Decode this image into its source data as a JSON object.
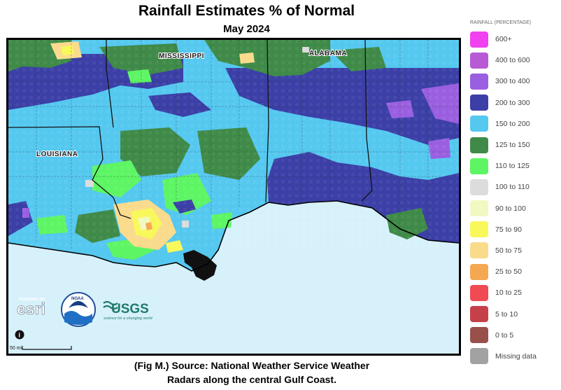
{
  "title": "Rainfall Estimates % of Normal",
  "subtitle": "May 2024",
  "caption_line1": "(Fig M.) Source: National Weather Service Weather",
  "caption_line2": "Radars along the central Gulf Coast.",
  "map": {
    "state_labels": [
      "MISSISSIPPI",
      "ALABAMA",
      "LOUISIANA"
    ],
    "scale_text": "50 mi",
    "info_icon": "info-icon",
    "logos": {
      "esri_top": "POWERED BY",
      "esri": "esri",
      "noaa": "NOAA",
      "usgs": "USGS",
      "usgs_tagline": "science for a changing world"
    },
    "gulf_color": "#d7f1fb"
  },
  "legend": {
    "title": "RAINFALL (percentage)",
    "items": [
      {
        "label": "600+",
        "color": "#f040f0"
      },
      {
        "label": "400 to 600",
        "color": "#b85ad6"
      },
      {
        "label": "300 to 400",
        "color": "#9a5fe0"
      },
      {
        "label": "200 to 300",
        "color": "#3b3fa6"
      },
      {
        "label": "150 to 200",
        "color": "#55c8f0"
      },
      {
        "label": "125 to 150",
        "color": "#3f8a48"
      },
      {
        "label": "110 to 125",
        "color": "#5df564"
      },
      {
        "label": "100 to 110",
        "color": "#dcdcdc"
      },
      {
        "label": "90 to 100",
        "color": "#f2f8c2"
      },
      {
        "label": "75 to 90",
        "color": "#f8f85a"
      },
      {
        "label": "50 to 75",
        "color": "#fadb8c"
      },
      {
        "label": "25 to 50",
        "color": "#f5a852"
      },
      {
        "label": "10 to 25",
        "color": "#f04a52"
      },
      {
        "label": "5 to 10",
        "color": "#c6404a"
      },
      {
        "label": "0 to 5",
        "color": "#98504a"
      },
      {
        "label": "Missing data",
        "color": "#a2a2a2"
      }
    ]
  }
}
